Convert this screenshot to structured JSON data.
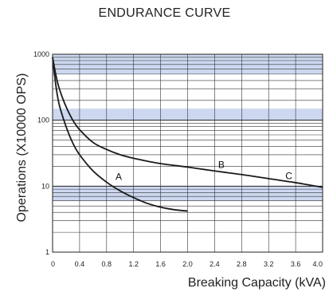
{
  "chart_data": {
    "type": "line",
    "title": "ENDURANCE CURVE",
    "xlabel": "Breaking Capacity (kVA)",
    "ylabel": "Operations (X10000 OPS)",
    "xlim": [
      0,
      4.0
    ],
    "ylim": [
      1,
      1000
    ],
    "yscale": "log",
    "x_ticks": [
      "0",
      "0.4",
      "0.8",
      "1.2",
      "1.6",
      "2.0",
      "2.4",
      "2.8",
      "3.2",
      "3.6",
      "4.0"
    ],
    "y_ticks": [
      "1",
      "10",
      "100",
      "1000"
    ],
    "grid": true,
    "shaded_bands": [
      [
        10,
        6
      ],
      [
        150,
        100
      ],
      [
        1000,
        500
      ]
    ],
    "band_color": "#cdd8f0",
    "series": [
      {
        "label": "A",
        "x": [
          0.0,
          0.05,
          0.1,
          0.2,
          0.3,
          0.4,
          0.6,
          0.8,
          1.0,
          1.2,
          1.4,
          1.6,
          1.8,
          2.0
        ],
        "y": [
          900,
          330,
          170,
          80,
          45,
          30,
          17,
          11.5,
          8.5,
          6.7,
          5.5,
          4.8,
          4.4,
          4.2
        ]
      },
      {
        "label": "B",
        "x": [
          0.0,
          0.05,
          0.1,
          0.2,
          0.3,
          0.4,
          0.6,
          0.8,
          1.0,
          1.2,
          1.6,
          2.0,
          2.4,
          2.8,
          3.2,
          3.6,
          4.0
        ],
        "y": [
          900,
          480,
          300,
          160,
          100,
          72,
          46,
          36,
          30,
          26.5,
          22,
          19.5,
          17,
          15,
          13,
          11.3,
          9.6
        ]
      }
    ],
    "annotations": [
      {
        "text": "A",
        "x": 0.98,
        "y": 12.5
      },
      {
        "text": "B",
        "x": 2.5,
        "y": 19
      },
      {
        "text": "C",
        "x": 3.5,
        "y": 12.8
      }
    ]
  }
}
